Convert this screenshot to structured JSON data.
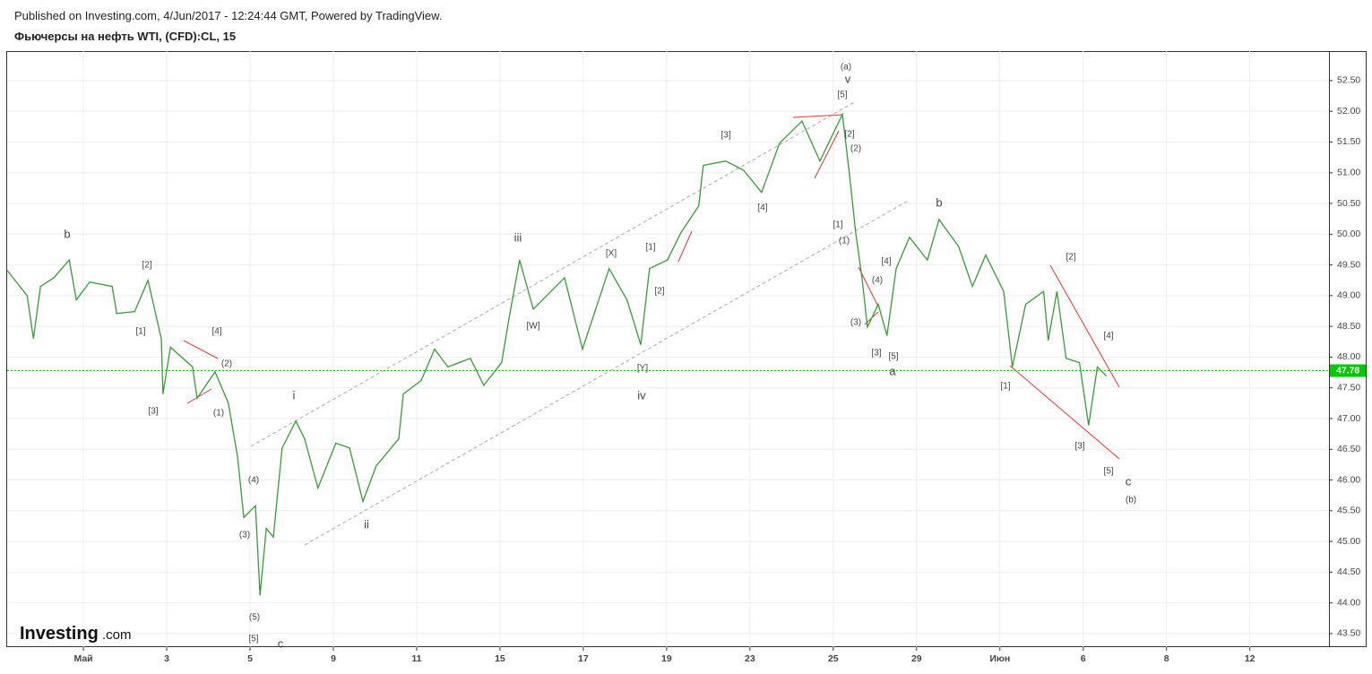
{
  "header": {
    "published": "Published on Investing.com, 4/Jun/2017 - 12:24:44 GMT, Powered by TradingView.",
    "instrument": "Фьючерсы на нефть WTI, (CFD):CL, 15"
  },
  "logo": {
    "brand": "Investing",
    "suffix": ".com"
  },
  "chart_data": {
    "type": "line",
    "color": "#3a9a3a",
    "x": [
      -1.83,
      -1.35,
      -1.2,
      -1.03,
      -0.71,
      -0.34,
      -0.17,
      0.15,
      0.69,
      0.8,
      1.23,
      1.55,
      1.87,
      1.91,
      2.09,
      2.62,
      2.73,
      3.16,
      3.48,
      3.7,
      3.85,
      4.13,
      4.24,
      4.39,
      4.56,
      4.77,
      5.1,
      5.31,
      5.63,
      6.06,
      6.39,
      6.71,
      7.03,
      7.57,
      7.68,
      8.11,
      8.43,
      8.75,
      9.29,
      9.61,
      10.04,
      10.22,
      10.47,
      10.8,
      11.55,
      11.98,
      12.62,
      13.05,
      13.38,
      13.59,
      14.02,
      14.34,
      14.77,
      14.88,
      15.42,
      15.85,
      16.28,
      16.71,
      17.25,
      17.68,
      18.22,
      18.39,
      18.54,
      18.69,
      18.82,
      19.08,
      19.29,
      19.51,
      19.83,
      20.26,
      20.54,
      21.01,
      21.34,
      21.66,
      22.09,
      22.3,
      22.62,
      23.05,
      23.16,
      23.37,
      23.59,
      23.91,
      24.13,
      24.34,
      24.56
    ],
    "values": [
      49.41,
      49.0,
      48.3,
      49.15,
      49.29,
      49.58,
      48.93,
      49.22,
      49.15,
      48.71,
      48.74,
      49.25,
      48.3,
      47.4,
      48.16,
      47.84,
      47.33,
      47.76,
      47.25,
      46.38,
      45.39,
      45.58,
      44.12,
      45.21,
      45.07,
      46.52,
      46.96,
      46.67,
      45.87,
      46.6,
      46.52,
      45.65,
      46.23,
      46.67,
      47.4,
      47.62,
      48.13,
      47.84,
      47.98,
      47.54,
      47.91,
      48.64,
      49.58,
      48.78,
      49.29,
      48.13,
      49.44,
      48.93,
      48.2,
      49.44,
      49.58,
      50.02,
      50.46,
      51.12,
      51.19,
      51.04,
      50.68,
      51.48,
      51.84,
      51.19,
      51.95,
      50.97,
      50.02,
      49.29,
      48.49,
      48.86,
      48.35,
      49.44,
      49.95,
      49.58,
      50.24,
      49.8,
      49.15,
      49.66,
      49.07,
      47.84,
      48.86,
      49.07,
      48.27,
      49.07,
      47.98,
      47.91,
      46.89,
      47.84,
      47.69
    ],
    "last_price": 47.78,
    "last_price_color": "#00c800",
    "xlim": [
      -1.83,
      29.9
    ],
    "xticks": [
      {
        "value": 0,
        "label": "Май"
      },
      {
        "value": 2,
        "label": "3"
      },
      {
        "value": 4,
        "label": "5"
      },
      {
        "value": 6,
        "label": "9"
      },
      {
        "value": 8,
        "label": "11"
      },
      {
        "value": 10,
        "label": "15"
      },
      {
        "value": 12,
        "label": "17"
      },
      {
        "value": 14,
        "label": "19"
      },
      {
        "value": 16,
        "label": "23"
      },
      {
        "value": 18,
        "label": "25"
      },
      {
        "value": 20,
        "label": "29"
      },
      {
        "value": 22,
        "label": "Июн"
      },
      {
        "value": 24,
        "label": "6"
      },
      {
        "value": 26,
        "label": "8"
      },
      {
        "value": 28,
        "label": "12"
      }
    ],
    "ylim": [
      43.28,
      52.98
    ],
    "yticks": [
      {
        "value": 43.5,
        "label": "43.50"
      },
      {
        "value": 44,
        "label": "44.00"
      },
      {
        "value": 44.5,
        "label": "44.50"
      },
      {
        "value": 45,
        "label": "45.00"
      },
      {
        "value": 45.5,
        "label": "45.50"
      },
      {
        "value": 46,
        "label": "46.00"
      },
      {
        "value": 46.5,
        "label": "46.50"
      },
      {
        "value": 47,
        "label": "47.00"
      },
      {
        "value": 47.5,
        "label": "47.50"
      },
      {
        "value": 48,
        "label": "48.00"
      },
      {
        "value": 48.5,
        "label": "48.50"
      },
      {
        "value": 49,
        "label": "49.00"
      },
      {
        "value": 49.5,
        "label": "49.50"
      },
      {
        "value": 50,
        "label": "50.00"
      },
      {
        "value": 50.5,
        "label": "50.50"
      },
      {
        "value": 51,
        "label": "51.00"
      },
      {
        "value": 51.5,
        "label": "51.50"
      },
      {
        "value": 52,
        "label": "52.00"
      },
      {
        "value": 52.5,
        "label": "52.50"
      }
    ],
    "grid": true,
    "annotations": [
      "b",
      "[2]",
      "[1]",
      "[4]",
      "(2)",
      "[3]",
      "(1)",
      "i",
      "(4)",
      "(3)",
      "(5)",
      "[5]",
      "c",
      "ii",
      "iii",
      "[W]",
      "[X]",
      "[1]",
      "[2]",
      "[Y]",
      "iv",
      "[3]",
      "[4]",
      "(a)",
      "v",
      "[5]",
      "[2]",
      "(2)",
      "[1]",
      "(1)",
      "[4]",
      "(4)",
      "(3)",
      "[3]",
      "[5]",
      "a",
      "b",
      "[2]",
      "[4]",
      "[1]",
      "[3]",
      "[5]",
      "c",
      "(b)"
    ]
  }
}
